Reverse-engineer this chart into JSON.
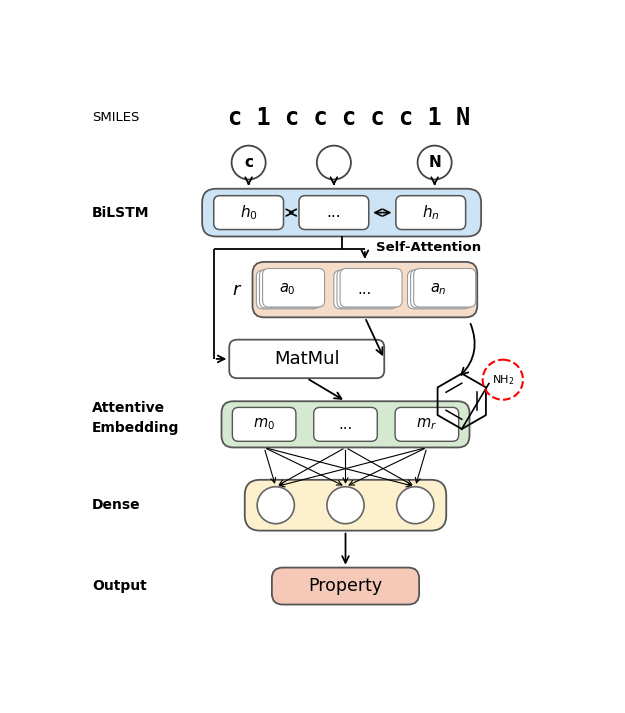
{
  "title_smiles": "c 1 c c c c c 1 N",
  "label_smiles": "SMILES",
  "label_bilstm": "BiLSTM",
  "label_attentive": "Attentive\nEmbedding",
  "label_dense": "Dense",
  "label_output": "Output",
  "label_self_attention": "Self-Attention",
  "label_matmul": "MatMul",
  "label_property": "Property",
  "bilstm_color": "#cce4f5",
  "attention_color": "#f5dcc8",
  "attentive_embed_color": "#d5e8d0",
  "dense_color": "#fdf0cc",
  "output_color": "#f5c8b8",
  "fig_width": 6.25,
  "fig_height": 7.13,
  "dpi": 100
}
